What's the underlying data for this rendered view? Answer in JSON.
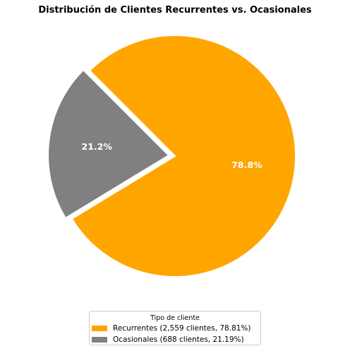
{
  "chart_data": {
    "type": "pie",
    "title": "Distribución de Clientes Recurrentes vs. Ocasionales",
    "legend_title": "Tipo de cliente",
    "legend_placement": "bottom-center",
    "slices": [
      {
        "name": "Recurrentes",
        "value": 2559,
        "percent": 78.81,
        "label": "78.8%",
        "legend_label": "Recurrentes (2,559 clientes, 78.81%)",
        "color": "#FFA500",
        "exploded": false
      },
      {
        "name": "Ocasionales",
        "value": 688,
        "percent": 21.19,
        "label": "21.2%",
        "legend_label": "Ocasionales (688 clientes, 21.19%)",
        "color": "#808080",
        "exploded": true
      }
    ]
  }
}
